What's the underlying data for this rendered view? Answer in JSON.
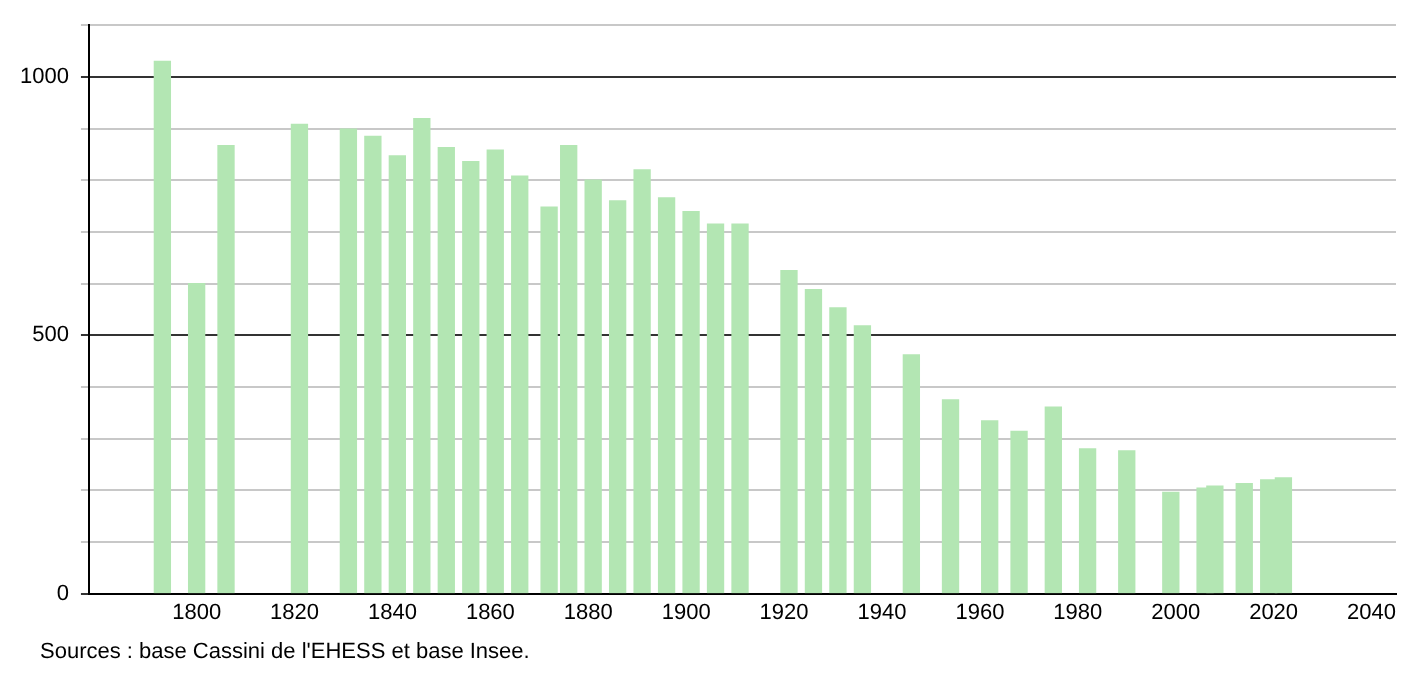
{
  "chart_data": {
    "type": "bar",
    "x": [
      1793,
      1800,
      1806,
      1821,
      1831,
      1836,
      1841,
      1846,
      1851,
      1856,
      1861,
      1866,
      1872,
      1876,
      1881,
      1886,
      1891,
      1896,
      1901,
      1906,
      1911,
      1921,
      1926,
      1931,
      1936,
      1946,
      1954,
      1962,
      1968,
      1975,
      1982,
      1990,
      1999,
      2006,
      2008,
      2014,
      2019,
      2022
    ],
    "values": [
      1030,
      600,
      867,
      908,
      899,
      885,
      847,
      919,
      863,
      836,
      858,
      808,
      748,
      867,
      800,
      760,
      820,
      766,
      739,
      715,
      715,
      625,
      588,
      553,
      518,
      462,
      375,
      334,
      314,
      361,
      280,
      276,
      196,
      204,
      208,
      213,
      220,
      224
    ],
    "color": "#b3e6b3",
    "xlim": [
      1778,
      2045
    ],
    "xticks": [
      1800,
      1820,
      1840,
      1860,
      1880,
      1900,
      1920,
      1940,
      1960,
      1980,
      2000,
      2020,
      2040
    ],
    "ylim": [
      0,
      1100
    ],
    "yticks": [
      0,
      {
        "value": 100,
        "label": null
      },
      {
        "value": 200,
        "label": null
      },
      {
        "value": 300,
        "label": null
      },
      {
        "value": 400,
        "label": null
      },
      500,
      {
        "value": 600,
        "label": null
      },
      {
        "value": 700,
        "label": null
      },
      {
        "value": 800,
        "label": null
      },
      {
        "value": 900,
        "label": null
      },
      1000,
      {
        "value": 1100,
        "label": null
      }
    ],
    "grid": "y",
    "legend": false,
    "annotations": [
      "Sources : base Cassini de l'EHESS et base Insee."
    ]
  }
}
